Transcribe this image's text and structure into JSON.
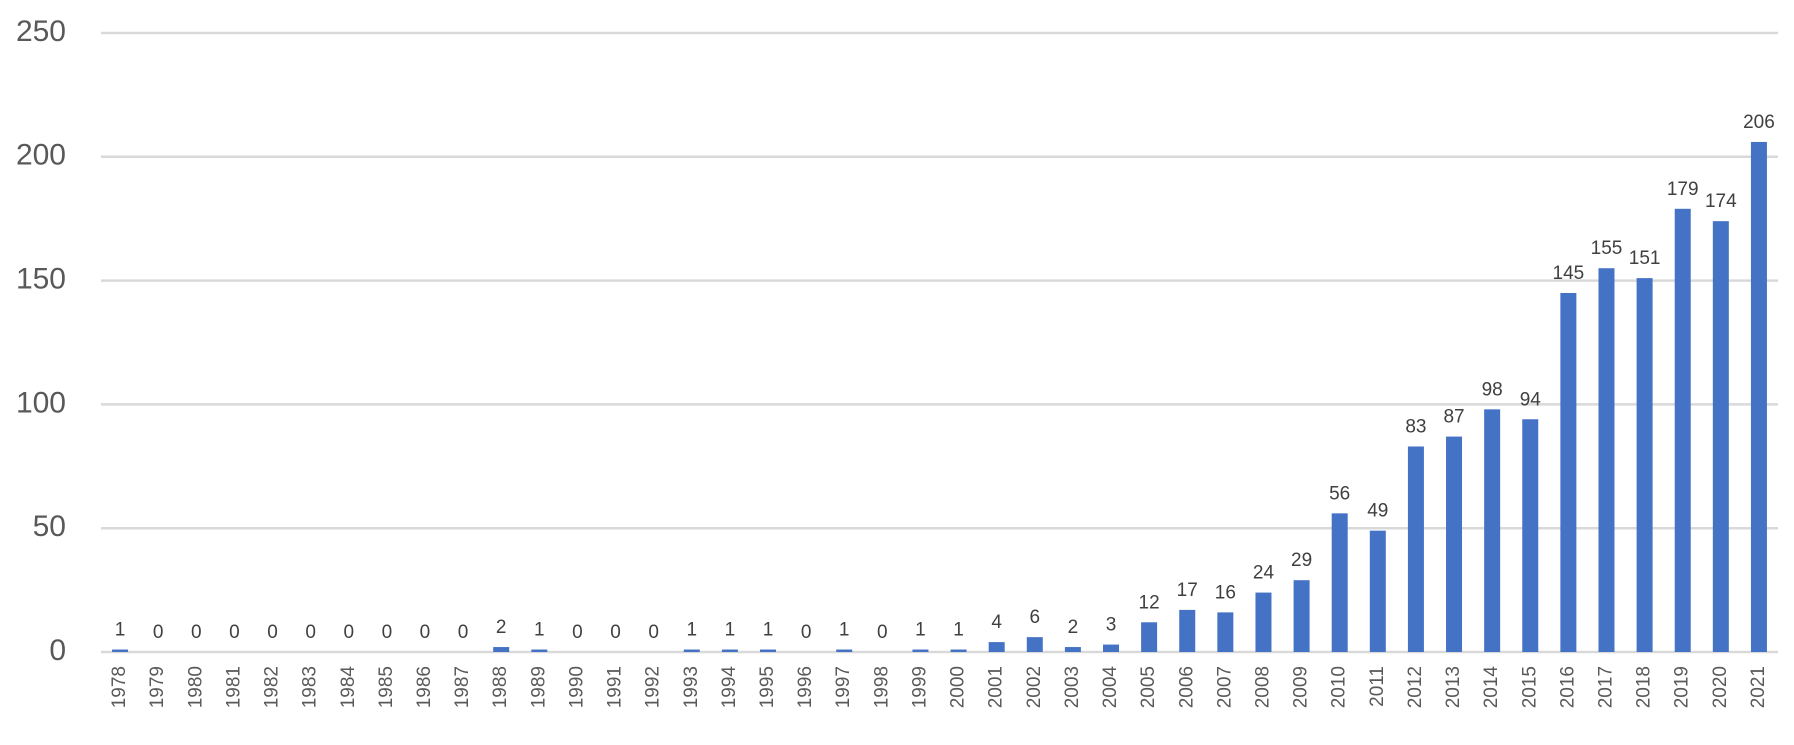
{
  "chart_data": {
    "type": "bar",
    "categories": [
      "1978",
      "1979",
      "1980",
      "1981",
      "1982",
      "1983",
      "1984",
      "1985",
      "1986",
      "1987",
      "1988",
      "1989",
      "1990",
      "1991",
      "1992",
      "1993",
      "1994",
      "1995",
      "1996",
      "1997",
      "1998",
      "1999",
      "2000",
      "2001",
      "2002",
      "2003",
      "2004",
      "2005",
      "2006",
      "2007",
      "2008",
      "2009",
      "2010",
      "2011",
      "2012",
      "2013",
      "2014",
      "2015",
      "2016",
      "2017",
      "2018",
      "2019",
      "2020",
      "2021"
    ],
    "values": [
      1,
      0,
      0,
      0,
      0,
      0,
      0,
      0,
      0,
      0,
      2,
      1,
      0,
      0,
      0,
      1,
      1,
      1,
      0,
      1,
      0,
      1,
      1,
      4,
      6,
      2,
      3,
      12,
      17,
      16,
      24,
      29,
      56,
      49,
      83,
      87,
      98,
      94,
      145,
      155,
      151,
      179,
      174,
      206
    ],
    "color": "#4472c4",
    "ylim": [
      0,
      250
    ],
    "yticks": [
      0,
      50,
      100,
      150,
      200,
      250
    ],
    "grid": true
  }
}
